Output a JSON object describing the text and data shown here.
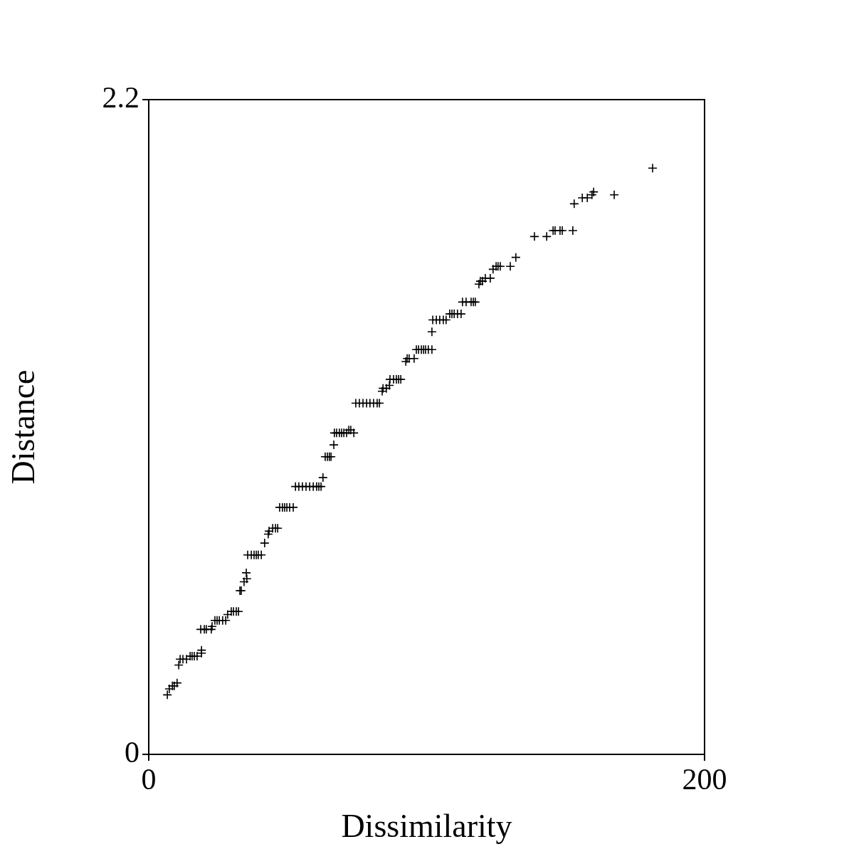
{
  "chart_data": {
    "type": "scatter",
    "xlabel": "Dissimilarity",
    "ylabel": "Distance",
    "marker": "cross",
    "color": "#000000",
    "xlim": [
      0,
      200
    ],
    "ylim": [
      0,
      2.2
    ],
    "xticks": [
      0,
      200
    ],
    "yticks": [
      0,
      2.2
    ],
    "x": [
      6.7,
      7.4,
      8.5,
      9.2,
      10.2,
      10.8,
      11.3,
      12.3,
      13.6,
      14.9,
      15.6,
      16.4,
      17.4,
      19.0,
      19.0,
      18.7,
      20.0,
      20.7,
      22.5,
      22.8,
      23.8,
      24.6,
      25.4,
      26.6,
      27.7,
      28.4,
      29.7,
      30.5,
      31.5,
      32.3,
      32.8,
      33.3,
      34.3,
      35.3,
      35.1,
      35.6,
      36.9,
      37.9,
      38.7,
      39.4,
      40.5,
      41.7,
      43.0,
      43.3,
      44.6,
      45.6,
      46.4,
      47.1,
      48.1,
      48.9,
      49.7,
      50.7,
      52.0,
      52.8,
      54.0,
      55.3,
      56.6,
      57.9,
      59.2,
      60.4,
      61.2,
      62.0,
      62.7,
      63.5,
      64.3,
      65.0,
      65.6,
      66.6,
      66.8,
      67.6,
      68.6,
      69.4,
      70.2,
      71.2,
      72.0,
      72.7,
      73.8,
      74.5,
      75.8,
      77.1,
      78.4,
      79.6,
      80.9,
      82.2,
      83.0,
      84.0,
      84.3,
      85.5,
      86.6,
      86.8,
      88.1,
      89.1,
      89.9,
      90.7,
      92.5,
      93.0,
      93.7,
      95.5,
      96.3,
      97.1,
      98.1,
      98.9,
      99.6,
      100.6,
      101.9,
      101.9,
      102.2,
      103.5,
      104.7,
      106.0,
      107.0,
      108.3,
      109.1,
      109.9,
      111.1,
      112.4,
      112.9,
      114.2,
      116.0,
      116.8,
      117.5,
      118.8,
      119.3,
      120.1,
      121.1,
      122.9,
      123.9,
      125.0,
      125.7,
      126.5,
      130.1,
      132.1,
      138.8,
      143.2,
      145.5,
      146.2,
      148.0,
      148.8,
      152.6,
      153.1,
      156.0,
      157.8,
      159.5,
      160.1,
      167.5,
      181.3
    ],
    "values": [
      0.2,
      0.22,
      0.23,
      0.23,
      0.24,
      0.3,
      0.32,
      0.32,
      0.32,
      0.33,
      0.33,
      0.33,
      0.33,
      0.34,
      0.35,
      0.42,
      0.42,
      0.42,
      0.42,
      0.43,
      0.45,
      0.45,
      0.45,
      0.45,
      0.45,
      0.47,
      0.48,
      0.48,
      0.48,
      0.48,
      0.55,
      0.55,
      0.58,
      0.59,
      0.61,
      0.67,
      0.67,
      0.67,
      0.67,
      0.67,
      0.67,
      0.71,
      0.74,
      0.75,
      0.76,
      0.76,
      0.76,
      0.83,
      0.83,
      0.83,
      0.83,
      0.83,
      0.83,
      0.9,
      0.9,
      0.9,
      0.9,
      0.9,
      0.9,
      0.9,
      0.9,
      0.9,
      0.93,
      1.0,
      1.0,
      1.0,
      1.0,
      1.04,
      1.08,
      1.08,
      1.08,
      1.08,
      1.08,
      1.08,
      1.09,
      1.09,
      1.08,
      1.18,
      1.18,
      1.18,
      1.18,
      1.18,
      1.18,
      1.18,
      1.18,
      1.22,
      1.23,
      1.23,
      1.24,
      1.26,
      1.26,
      1.26,
      1.26,
      1.26,
      1.32,
      1.33,
      1.33,
      1.33,
      1.36,
      1.36,
      1.36,
      1.36,
      1.36,
      1.36,
      1.36,
      1.42,
      1.46,
      1.46,
      1.46,
      1.46,
      1.46,
      1.48,
      1.48,
      1.48,
      1.48,
      1.48,
      1.52,
      1.52,
      1.52,
      1.52,
      1.52,
      1.58,
      1.59,
      1.59,
      1.6,
      1.6,
      1.63,
      1.64,
      1.64,
      1.64,
      1.64,
      1.67,
      1.74,
      1.74,
      1.76,
      1.76,
      1.76,
      1.76,
      1.76,
      1.85,
      1.87,
      1.87,
      1.88,
      1.89,
      1.88,
      1.97
    ]
  }
}
